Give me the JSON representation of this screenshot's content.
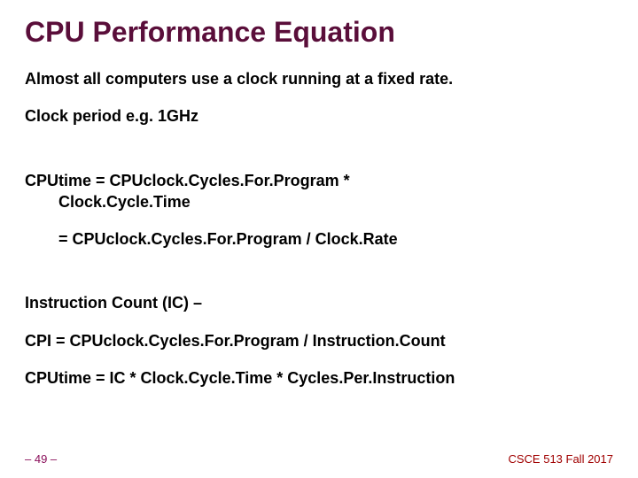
{
  "colors": {
    "title": "#5a0e3a",
    "body": "#000000",
    "page_number": "#8a0e5a",
    "footer_right": "#a00000",
    "background": "#ffffff"
  },
  "title": "CPU Performance Equation",
  "lines": {
    "l1": "Almost all computers use a clock running at a fixed rate.",
    "l2": "Clock period   e.g. 1GHz",
    "l3a": "CPUtime = CPUclock.Cycles.For.Program *",
    "l3b": "Clock.Cycle.Time",
    "l4": "= CPUclock.Cycles.For.Program / Clock.Rate",
    "l5": "Instruction Count (IC) –",
    "l6": "CPI = CPUclock.Cycles.For.Program / Instruction.Count",
    "l7": "CPUtime = IC * Clock.Cycle.Time * Cycles.Per.Instruction"
  },
  "footer": {
    "page": "– 49 –",
    "course": "CSCE 513 Fall 2017"
  },
  "typography": {
    "title_fontsize": 32,
    "body_fontsize": 18,
    "footer_fontsize": 13,
    "font_family": "Arial",
    "body_weight": "bold"
  }
}
